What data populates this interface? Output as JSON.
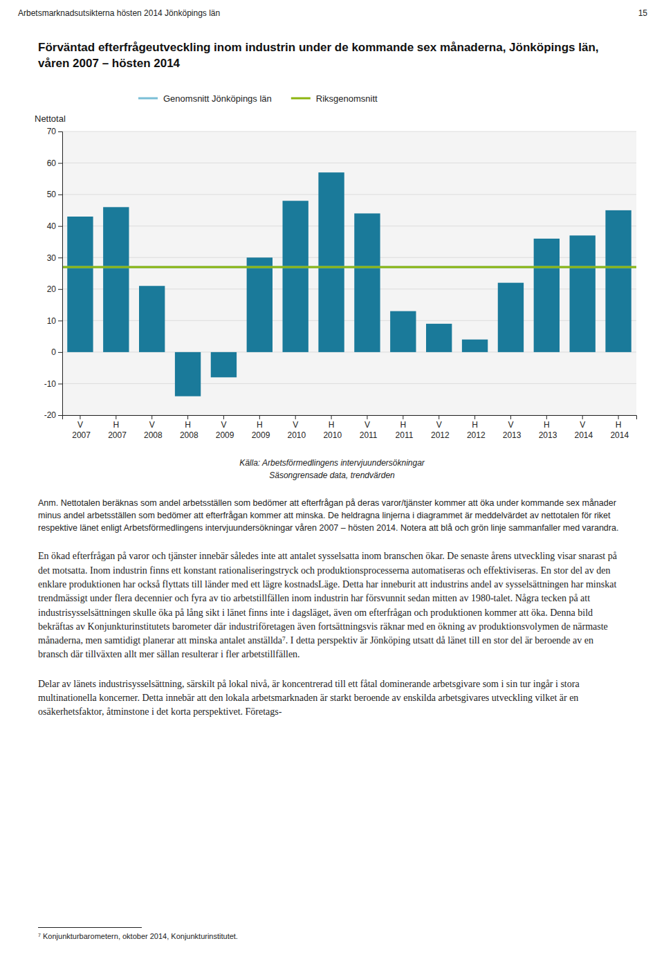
{
  "header_text": "Arbetsmarknadsutsikterna hösten 2014 Jönköpings län",
  "page_number": "15",
  "chart_data": {
    "type": "bar",
    "title": "Förväntad efterfrågeutveckling inom industrin under de kommande sex månaderna, Jönköpings län, våren 2007 – hösten 2014",
    "ylabel": "Nettotal",
    "categories": [
      "V 2007",
      "H 2007",
      "V 2008",
      "H 2008",
      "V 2009",
      "H 2009",
      "V 2010",
      "H 2010",
      "V 2011",
      "H 2011",
      "V 2012",
      "H 2012",
      "V 2013",
      "H 2013",
      "V 2014",
      "H 2014"
    ],
    "values": [
      43,
      46,
      21,
      -14,
      -8,
      30,
      48,
      57,
      44,
      13,
      9,
      4,
      22,
      36,
      37,
      45
    ],
    "color": "#1a7a9a",
    "reference_lines": [
      {
        "name": "Genomsnitt Jönköpings län",
        "value": 27,
        "color": "#7abfd6"
      },
      {
        "name": "Riksgenomsnitt",
        "value": 27,
        "color": "#8db510"
      }
    ],
    "ylim": [
      -20,
      70
    ],
    "yticks": [
      -20,
      -10,
      0,
      10,
      20,
      30,
      40,
      50,
      60,
      70
    ],
    "grid": true,
    "legend": "top"
  },
  "source_lines": [
    "Källa: Arbetsförmedlingens intervjuundersökningar",
    "Säsongrensade data, trendvärden"
  ],
  "note": "Anm. Nettotalen beräknas som andel arbetsställen som bedömer att efterfrågan på deras varor/tjänster kommer att öka under kommande sex månader minus andel arbetsställen som bedömer att efterfrågan kommer att minska. De heldragna linjerna i diagrammet är meddelvärdet av nettotalen för riket respektive länet enligt Arbetsförmedlingens intervjuundersökningar våren 2007 – hösten 2014. Notera att blå och grön linje sammanfaller med varandra.",
  "body": [
    "En ökad efterfrågan på varor och tjänster innebär således inte att antalet sysselsatta inom branschen ökar. De senaste årens utveckling visar snarast på det motsatta. Inom industrin finns ett konstant rationaliseringstryck och produktionsprocesserna automatiseras och effektiviseras. En stor del av den enklare produktionen har också flyttats till länder med ett lägre kostnadsLäge. Detta har inneburit att industrins andel av sysselsättningen har minskat trendmässigt under flera decennier och fyra av tio arbetstillfällen inom industrin har försvunnit sedan mitten av 1980-talet. Några tecken på att industrisysselsättningen skulle öka på lång sikt i länet finns inte i dagsläget, även om efterfrågan och produktionen kommer att öka. Denna bild bekräftas av Konjunkturinstitutets barometer där industriföretagen även fortsättningsvis räknar med en ökning av produktionsvolymen de närmaste månaderna, men samtidigt planerar att minska antalet anställda⁷. I detta perspektiv är Jönköping utsatt då länet till en stor del är beroende av en bransch där tillväxten allt mer sällan resulterar i fler arbetstillfällen.",
    "Delar av länets industrisysselsättning, särskilt på lokal nivå, är koncentrerad till ett fåtal dominerande arbetsgivare som i sin tur ingår i stora multinationella koncerner. Detta innebär att den lokala arbetsmarknaden är starkt beroende av enskilda arbetsgivares utveckling vilket är en osäkerhetsfaktor, åtminstone i det korta perspektivet. Företags-"
  ],
  "footnote": "⁷ Konjunkturbarometern, oktober 2014, Konjunkturinstitutet."
}
